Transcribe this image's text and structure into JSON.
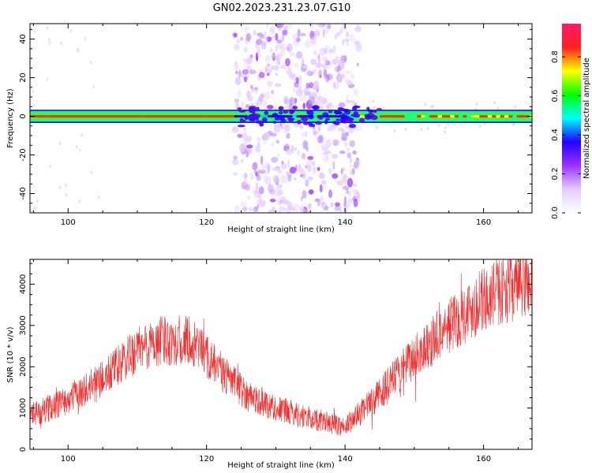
{
  "title": "GN02.2023.231.23.07.G10",
  "chart_data": [
    {
      "type": "heatmap",
      "xlabel": "Height of straight line (km)",
      "ylabel": "Frequency (Hz)",
      "xlim": [
        94.5,
        167
      ],
      "ylim": [
        -50,
        48
      ],
      "xticks": [
        100,
        120,
        140,
        160
      ],
      "yticks": [
        -40,
        -20,
        0,
        20,
        40
      ],
      "colorbar": {
        "label": "Normalized spectral amplitude",
        "range": [
          0,
          0.97
        ],
        "ticks": [
          0.0,
          0.2,
          0.4,
          0.6,
          0.8
        ]
      },
      "carrier_band_hz": [
        -3,
        3
      ],
      "scatter_region_km": [
        124,
        142
      ],
      "colormap": [
        "#ffffff",
        "#e6ccff",
        "#9933ff",
        "#2200ff",
        "#00ffff",
        "#00ff00",
        "#ffff00",
        "#ff2020",
        "#ff1a66"
      ]
    },
    {
      "type": "line",
      "xlabel": "Height of straight line (km)",
      "ylabel": "SNR (10 * v/v)",
      "xlim": [
        94.5,
        167
      ],
      "ylim": [
        0,
        4600
      ],
      "xticks": [
        100,
        120,
        140,
        160
      ],
      "yticks": [
        0,
        1000,
        2000,
        3000,
        4000
      ],
      "line_color": "#f03030",
      "trend_points": [
        [
          94.5,
          800
        ],
        [
          100,
          1200
        ],
        [
          105,
          1700
        ],
        [
          110,
          2400
        ],
        [
          114,
          2650
        ],
        [
          118,
          2600
        ],
        [
          122,
          1900
        ],
        [
          126,
          1300
        ],
        [
          130,
          1000
        ],
        [
          135,
          750
        ],
        [
          140,
          550
        ],
        [
          143,
          1000
        ],
        [
          147,
          1700
        ],
        [
          151,
          2400
        ],
        [
          155,
          3000
        ],
        [
          159,
          3500
        ],
        [
          163,
          3900
        ],
        [
          167,
          4050
        ]
      ]
    }
  ]
}
